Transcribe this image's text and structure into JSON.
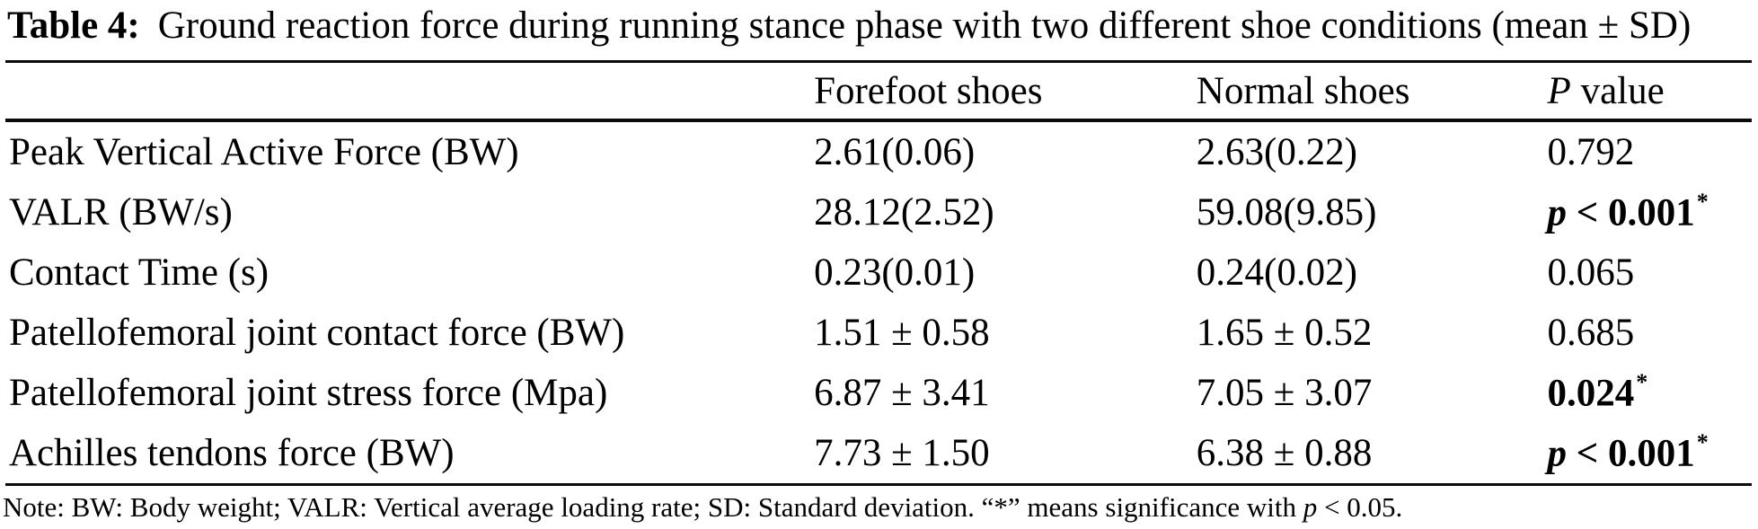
{
  "title": {
    "label": "Table 4:",
    "text": "Ground reaction force during running stance phase with two different shoe conditions (mean ± SD)"
  },
  "table": {
    "columns": [
      {
        "label": ""
      },
      {
        "label": "Forefoot shoes"
      },
      {
        "label": "Normal shoes"
      },
      {
        "italic_prefix": "P",
        "label": " value"
      }
    ],
    "rows": [
      {
        "label": "Peak Vertical Active Force (BW)",
        "forefoot": "2.61(0.06)",
        "normal": "2.63(0.22)",
        "p_value": {
          "text": "0.792",
          "bold": false
        }
      },
      {
        "label": "VALR (BW/s)",
        "forefoot": "28.12(2.52)",
        "normal": "59.08(9.85)",
        "p_value": {
          "italic_prefix": "p",
          "text": " < 0.001",
          "bold": true,
          "asterisk": "*"
        }
      },
      {
        "label": "Contact Time (s)",
        "forefoot": "0.23(0.01)",
        "normal": "0.24(0.02)",
        "p_value": {
          "text": "0.065",
          "bold": false
        }
      },
      {
        "label": "Patellofemoral joint contact force (BW)",
        "forefoot": "1.51 ± 0.58",
        "normal": "1.65 ± 0.52",
        "p_value": {
          "text": "0.685",
          "bold": false
        }
      },
      {
        "label": "Patellofemoral joint stress force (Mpa)",
        "forefoot": "6.87 ± 3.41",
        "normal": "7.05 ± 3.07",
        "p_value": {
          "text": "0.024",
          "bold": true,
          "asterisk": "*"
        }
      },
      {
        "label": "Achilles tendons force (BW)",
        "forefoot": "7.73 ± 1.50",
        "normal": "6.38 ± 0.88",
        "p_value": {
          "italic_prefix": "p",
          "text": " < 0.001",
          "bold": true,
          "asterisk": "*"
        }
      }
    ]
  },
  "note": {
    "before": "Note: BW: Body weight; VALR: Vertical average loading rate; SD: Standard deviation. “*” means significance with ",
    "italic": "p",
    "after": " < 0.05."
  }
}
